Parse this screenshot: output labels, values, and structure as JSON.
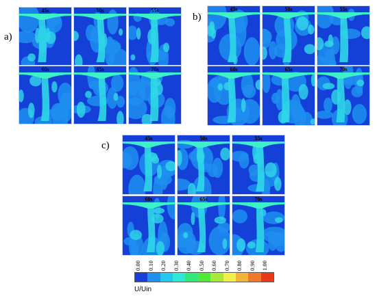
{
  "panels": [
    {
      "letter": "a)",
      "times": [
        "45s",
        "50s",
        "55s",
        "60s",
        "65s",
        "70s"
      ]
    },
    {
      "letter": "b)",
      "times": [
        "45s",
        "50s",
        "55s",
        "60s",
        "65s",
        "70s"
      ]
    },
    {
      "letter": "c)",
      "times": [
        "45s",
        "50s",
        "55s",
        "60s",
        "65s",
        "70s"
      ]
    }
  ],
  "colorbar": {
    "label": "U/Uin",
    "ticks": [
      "0.00",
      "0.10",
      "0.20",
      "0.30",
      "0.40",
      "0.50",
      "0.60",
      "0.70",
      "0.80",
      "0.90",
      "1.00"
    ],
    "colors": [
      "#1a3fd8",
      "#1f8ff0",
      "#27c8f0",
      "#2fe8d8",
      "#33e87a",
      "#52e83a",
      "#a8e83a",
      "#f0f04a",
      "#f0b43a",
      "#f0782a",
      "#e83a1a"
    ]
  },
  "colors": {
    "background": "#1440d8",
    "mid": "#1f8ff0",
    "high": "#2fd8e8",
    "jet": "#3ef0c8"
  }
}
